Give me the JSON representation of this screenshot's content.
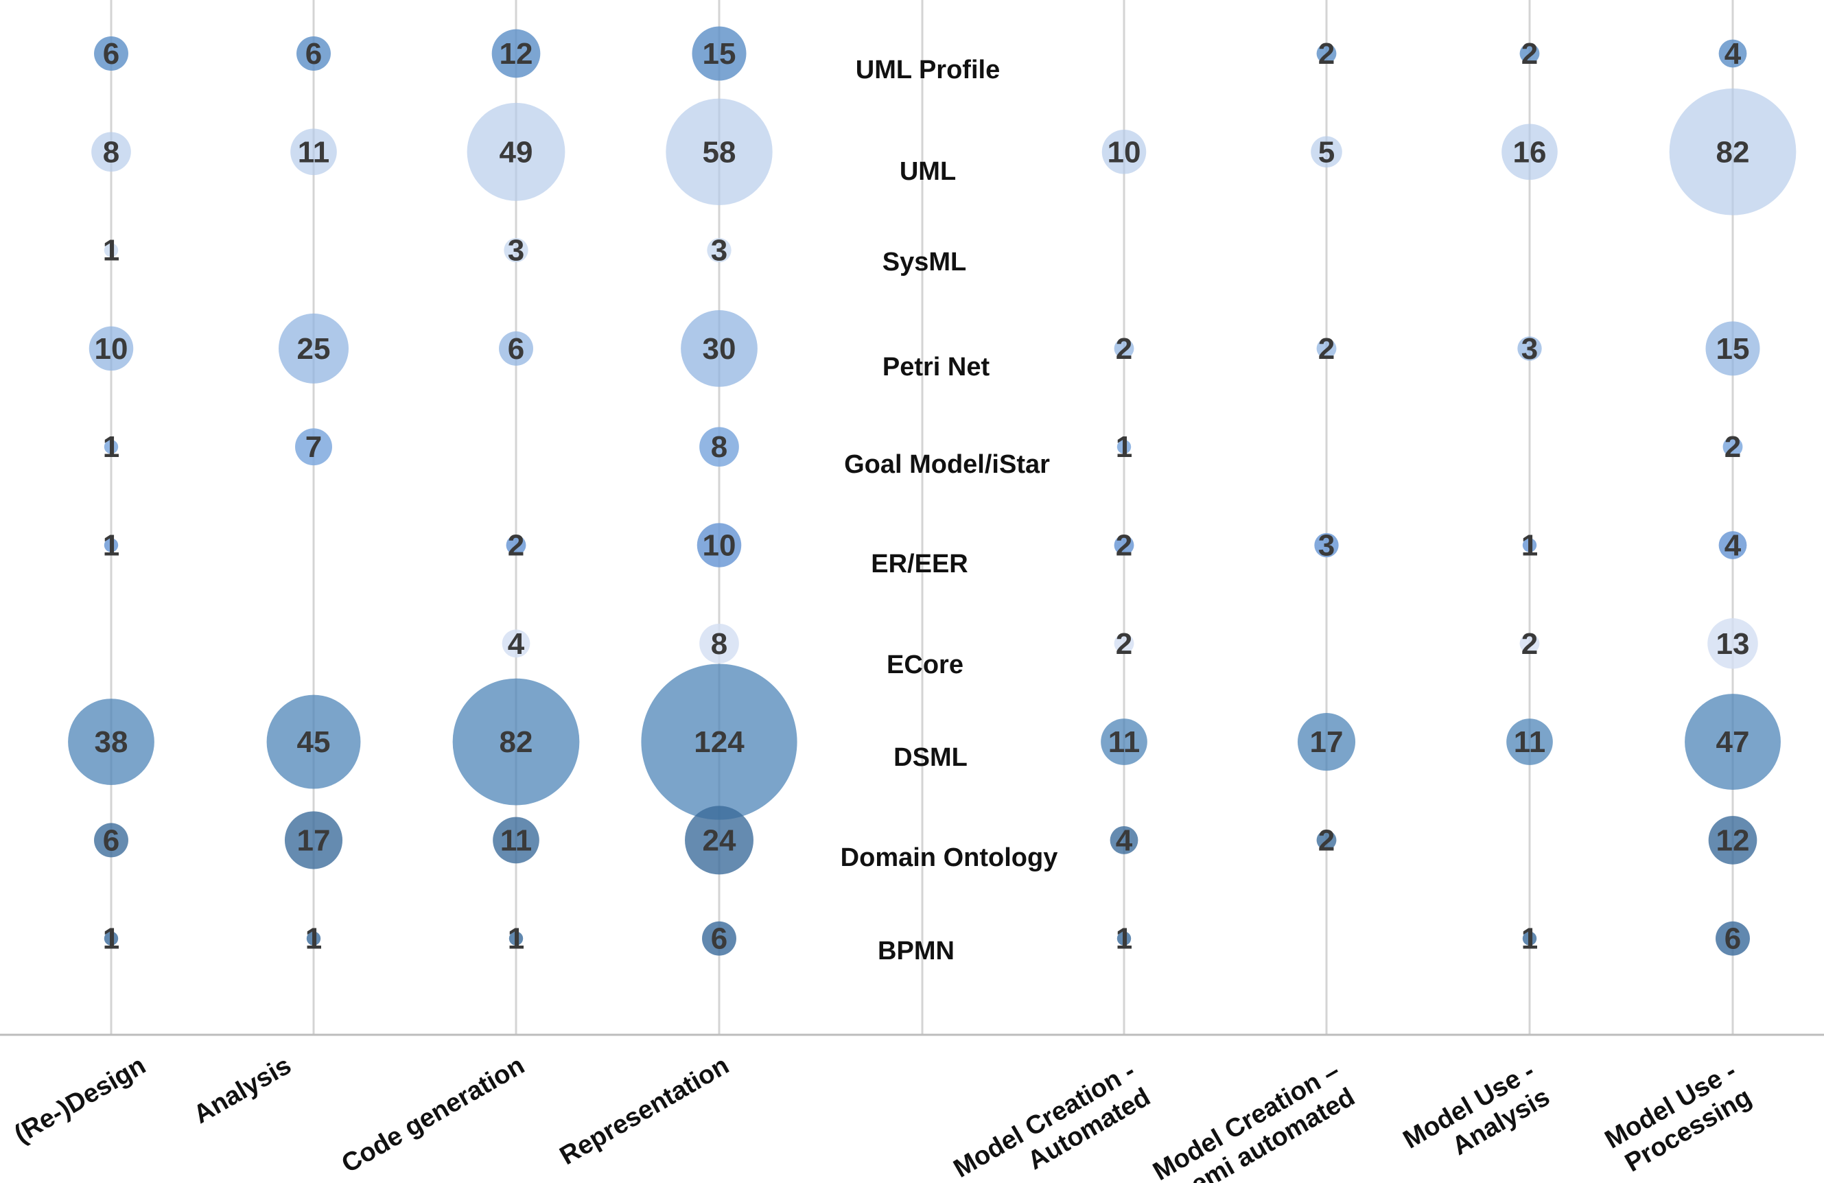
{
  "chart_data": {
    "type": "bubble",
    "title": "",
    "x_categories": [
      "(Re-)Design",
      "Analysis",
      "Code generation",
      "Representation",
      "",
      "Model Creation - Automated",
      "Model Creation – semi automated",
      "Model Use - Analysis",
      "Model Use - Processing"
    ],
    "x_category_lines": [
      [
        "(Re-)Design"
      ],
      [
        "Analysis"
      ],
      [
        "Code generation"
      ],
      [
        "Representation"
      ],
      [],
      [
        "Model Creation -",
        "Automated"
      ],
      [
        "Model Creation –",
        "semi automated"
      ],
      [
        "Model Use -",
        "Analysis"
      ],
      [
        "Model Use -",
        "Processing"
      ]
    ],
    "y_categories": [
      "UML Profile",
      "UML",
      "SysML",
      "Petri Net",
      "Goal Model/iStar",
      "ER/EER",
      "ECore",
      "DSML",
      "Domain Ontology",
      "BPMN"
    ],
    "series": [
      {
        "name": "UML Profile",
        "color": "#5b8fc7",
        "opacity": 0.8,
        "values": [
          6,
          6,
          12,
          15,
          null,
          null,
          2,
          2,
          4
        ]
      },
      {
        "name": "UML",
        "color": "#b6cceb",
        "opacity": 0.68,
        "values": [
          8,
          11,
          49,
          58,
          null,
          10,
          5,
          16,
          82
        ]
      },
      {
        "name": "SysML",
        "color": "#c5d7ef",
        "opacity": 0.75,
        "values": [
          1,
          null,
          3,
          3,
          null,
          null,
          null,
          null,
          null
        ]
      },
      {
        "name": "Petri Net",
        "color": "#8fb3e0",
        "opacity": 0.72,
        "values": [
          10,
          25,
          6,
          30,
          null,
          2,
          2,
          3,
          15
        ]
      },
      {
        "name": "Goal Model/iStar",
        "color": "#7fa9de",
        "opacity": 0.85,
        "values": [
          1,
          7,
          null,
          8,
          null,
          1,
          null,
          null,
          2
        ]
      },
      {
        "name": "ER/EER",
        "color": "#6d9ad6",
        "opacity": 0.85,
        "values": [
          1,
          null,
          2,
          10,
          null,
          2,
          3,
          1,
          4
        ]
      },
      {
        "name": "ECore",
        "color": "#d3def2",
        "opacity": 0.8,
        "values": [
          null,
          null,
          4,
          8,
          null,
          2,
          null,
          2,
          13
        ]
      },
      {
        "name": "DSML",
        "color": "#4f86b8",
        "opacity": 0.75,
        "values": [
          38,
          45,
          82,
          124,
          null,
          11,
          17,
          11,
          47
        ]
      },
      {
        "name": "Domain Ontology",
        "color": "#3a6a9a",
        "opacity": 0.78,
        "values": [
          6,
          17,
          11,
          24,
          null,
          4,
          2,
          null,
          12
        ]
      },
      {
        "name": "BPMN",
        "color": "#3e6e9e",
        "opacity": 0.82,
        "values": [
          1,
          1,
          1,
          6,
          null,
          1,
          null,
          1,
          6
        ]
      }
    ]
  }
}
